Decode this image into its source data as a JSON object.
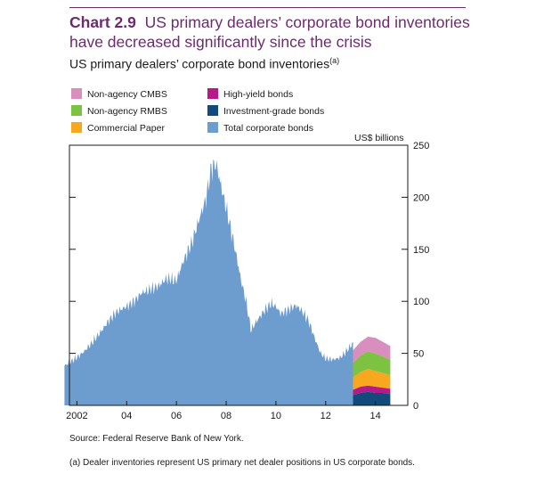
{
  "header": {
    "chart_number": "Chart 2.9",
    "title": "US primary dealers’ corporate bond inventories have decreased significantly since the crisis",
    "subtitle": "US primary dealers’ corporate bond inventories",
    "subtitle_note": "(a)"
  },
  "unit_label": "US$ billions",
  "source": "Source:  Federal Reserve Bank of New York.",
  "footnote": "(a)  Dealer inventories represent US primary net dealer positions in US corporate bonds.",
  "colors": {
    "title": "#6b2c6e",
    "total": "#6d9ccf",
    "investment_grade": "#124a7b",
    "high_yield": "#b5198a",
    "commercial_paper": "#f8a81f",
    "non_agency_rmbs": "#7ec242",
    "non_agency_cmbs": "#d98fbd"
  },
  "chart_data": {
    "type": "area",
    "title": "US primary dealers’ corporate bond inventories",
    "ylabel": "US$ billions",
    "ylim": [
      0,
      250
    ],
    "yticks": [
      0,
      50,
      100,
      150,
      200,
      250
    ],
    "xlim": [
      2001.7,
      2015.3
    ],
    "xticks": [
      {
        "value": 2002,
        "label": "2002"
      },
      {
        "value": 2004,
        "label": "04"
      },
      {
        "value": 2006,
        "label": "06"
      },
      {
        "value": 2008,
        "label": "08"
      },
      {
        "value": 2010,
        "label": "10"
      },
      {
        "value": 2012,
        "label": "12"
      },
      {
        "value": 2014,
        "label": "14"
      }
    ],
    "legend": [
      {
        "key": "non_agency_cmbs",
        "label": "Non-agency CMBS"
      },
      {
        "key": "non_agency_rmbs",
        "label": "Non-agency RMBS"
      },
      {
        "key": "commercial_paper",
        "label": "Commercial Paper"
      },
      {
        "key": "high_yield",
        "label": "High-yield bonds"
      },
      {
        "key": "investment_grade",
        "label": "Investment-grade bonds"
      },
      {
        "key": "total",
        "label": "Total corporate bonds"
      }
    ],
    "total_series": {
      "name": "Total corporate bonds",
      "x": [
        2001.5,
        2002.0,
        2002.3,
        2002.6,
        2003.0,
        2003.3,
        2003.6,
        2004.0,
        2004.3,
        2004.6,
        2005.0,
        2005.3,
        2005.6,
        2006.0,
        2006.3,
        2006.6,
        2006.8,
        2007.0,
        2007.2,
        2007.4,
        2007.6,
        2007.8,
        2008.0,
        2008.2,
        2008.4,
        2008.6,
        2008.8,
        2009.0,
        2009.2,
        2009.5,
        2009.8,
        2010.0,
        2010.2,
        2010.5,
        2010.8,
        2011.0,
        2011.3,
        2011.6,
        2011.8,
        2012.0,
        2012.3,
        2012.6,
        2012.9,
        2013.1
      ],
      "y": [
        38,
        46,
        52,
        60,
        72,
        82,
        90,
        95,
        100,
        108,
        112,
        115,
        122,
        120,
        140,
        155,
        170,
        185,
        200,
        228,
        232,
        210,
        190,
        168,
        145,
        120,
        100,
        72,
        80,
        90,
        98,
        95,
        88,
        92,
        96,
        92,
        82,
        62,
        50,
        45,
        44,
        46,
        54,
        60
      ]
    },
    "stacked_series": {
      "x": [
        2013.1,
        2013.4,
        2013.7,
        2014.0,
        2014.3,
        2014.6
      ],
      "series": [
        {
          "key": "investment_grade",
          "name": "Investment-grade bonds",
          "values": [
            10,
            12,
            13,
            12,
            12,
            11
          ]
        },
        {
          "key": "high_yield",
          "name": "High-yield bonds",
          "values": [
            5,
            6,
            6,
            6,
            5,
            5
          ]
        },
        {
          "key": "commercial_paper",
          "name": "Commercial Paper",
          "values": [
            12,
            14,
            16,
            15,
            14,
            13
          ]
        },
        {
          "key": "non_agency_rmbs",
          "name": "Non-agency RMBS",
          "values": [
            14,
            16,
            17,
            17,
            16,
            15
          ]
        },
        {
          "key": "non_agency_cmbs",
          "name": "Non-agency CMBS",
          "values": [
            12,
            13,
            14,
            15,
            14,
            13
          ]
        }
      ]
    }
  }
}
